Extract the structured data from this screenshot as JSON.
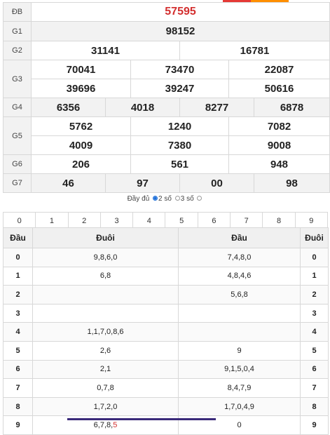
{
  "accent_colors": {
    "special": "#d32f2f",
    "radio": "#1e6fd9",
    "header_bg": "#f0f0f0"
  },
  "results": {
    "db": {
      "label": "ĐB",
      "values": [
        "57595"
      ]
    },
    "g1": {
      "label": "G1",
      "values": [
        "98152"
      ]
    },
    "g2": {
      "label": "G2",
      "values": [
        "31141",
        "16781"
      ]
    },
    "g3": {
      "label": "G3",
      "values": [
        "70041",
        "73470",
        "22087",
        "39696",
        "39247",
        "50616"
      ]
    },
    "g4": {
      "label": "G4",
      "values": [
        "6356",
        "4018",
        "8277",
        "6878"
      ]
    },
    "g5": {
      "label": "G5",
      "values": [
        "5762",
        "1240",
        "7082",
        "4009",
        "7380",
        "9008"
      ]
    },
    "g6": {
      "label": "G6",
      "values": [
        "206",
        "561",
        "948"
      ]
    },
    "g7": {
      "label": "G7",
      "values": [
        "46",
        "97",
        "00",
        "98"
      ]
    }
  },
  "options": {
    "full_label": "Đầy đủ",
    "two_digit_label": "2 số",
    "three_digit_label": "3 số",
    "selected": "2 số"
  },
  "digits": [
    "0",
    "1",
    "2",
    "3",
    "4",
    "5",
    "6",
    "7",
    "8",
    "9"
  ],
  "loto": {
    "headers": [
      "Đầu",
      "Đuôi",
      "Đầu",
      "Đuôi"
    ],
    "rows": [
      {
        "dau": "0",
        "duoi": "9,8,6,0",
        "dau2": "7,4,8,0",
        "duoi2": "0"
      },
      {
        "dau": "1",
        "duoi": "6,8",
        "dau2": "4,8,4,6",
        "duoi2": "1"
      },
      {
        "dau": "2",
        "duoi": "",
        "dau2": "5,6,8",
        "duoi2": "2"
      },
      {
        "dau": "3",
        "duoi": "",
        "dau2": "",
        "duoi2": "3"
      },
      {
        "dau": "4",
        "duoi": "1,1,7,0,8,6",
        "dau2": "",
        "duoi2": "4"
      },
      {
        "dau": "5",
        "duoi": "2,6",
        "dau2": "9",
        "duoi2": "5"
      },
      {
        "dau": "6",
        "duoi": "2,1",
        "dau2": "9,1,5,0,4",
        "duoi2": "6"
      },
      {
        "dau": "7",
        "duoi": "0,7,8",
        "dau2": "8,4,7,9",
        "duoi2": "7"
      },
      {
        "dau": "8",
        "duoi": "1,7,2,0",
        "dau2": "1,7,0,4,9",
        "duoi2": "8"
      },
      {
        "dau": "9",
        "duoi_prefix": "6,7,8,",
        "duoi_highlight": "5",
        "dau2": "0",
        "duoi2": "9"
      }
    ]
  }
}
